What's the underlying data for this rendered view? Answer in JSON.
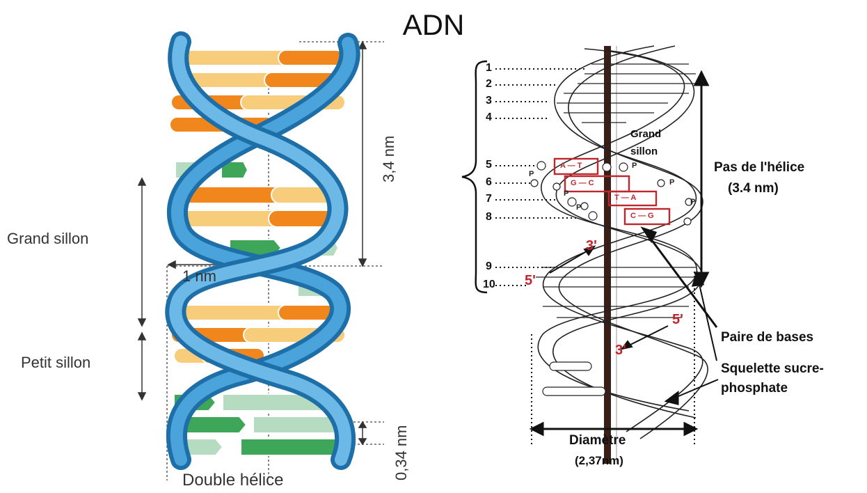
{
  "title": "ADN",
  "left": {
    "caption": "Double hélice",
    "grand_sillon": "Grand sillon",
    "petit_sillon": "Petit sillon",
    "width_label": "1 nm",
    "pitch_label": "3,4 nm",
    "base_spacing_label": "0,34 nm",
    "colors": {
      "backbone": "#2a84c4",
      "purine": "#f0861c",
      "pyrimidine": "#f7cc7a",
      "green_dark": "#3ea658",
      "green_light": "#b5dcc0"
    }
  },
  "right": {
    "grand_sillon": "Grand sillon",
    "pas_title": "Pas de l'hélice",
    "pas_value": "(3.4 nm)",
    "paire_de_bases": "Paire de bases",
    "squelette": "Squelette sucre-phosphate",
    "diametre": "Diamètre",
    "diametre_value": "(2,37nm)",
    "numbers": [
      "1",
      "2",
      "3",
      "4",
      "5",
      "6",
      "7",
      "8",
      "9",
      "10"
    ],
    "prime_labels": [
      "3'",
      "5'",
      "5'",
      "3'"
    ],
    "base_pairs": [
      "A — T",
      "G — C",
      "T — A",
      "C — G"
    ],
    "phosphate": "P"
  }
}
